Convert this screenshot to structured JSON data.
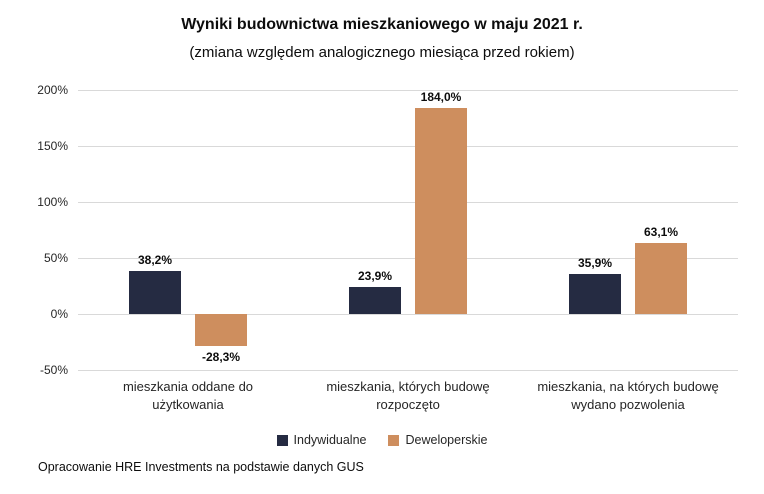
{
  "chart": {
    "title": "Wyniki budownictwa mieszkaniowego w maju 2021 r.",
    "subtitle": "(zmiana względem analogicznego miesiąca przed rokiem)",
    "source": "Opracowanie HRE Investments na podstawie danych GUS"
  },
  "chart_data": {
    "type": "bar",
    "title": "Wyniki budownictwa mieszkaniowego w maju 2021 r.",
    "subtitle": "(zmiana względem analogicznego miesiąca przed rokiem)",
    "categories": [
      "mieszkania oddane do użytkowania",
      "mieszkania, których budowę rozpoczęto",
      "mieszkania, na których budowę wydano pozwolenia"
    ],
    "series": [
      {
        "name": "Indywidualne",
        "color": "#252B42",
        "values": [
          38.2,
          23.9,
          35.9
        ],
        "labels": [
          "38,2%",
          "23,9%",
          "35,9%"
        ]
      },
      {
        "name": "Deweloperskie",
        "color": "#CE8E5E",
        "values": [
          -28.3,
          184.0,
          63.1
        ],
        "labels": [
          "-28,3%",
          "184,0%",
          "63,1%"
        ]
      }
    ],
    "ylim": [
      -50,
      200
    ],
    "yticks": [
      {
        "v": -50,
        "label": "-50%"
      },
      {
        "v": 0,
        "label": "0%"
      },
      {
        "v": 50,
        "label": "50%"
      },
      {
        "v": 100,
        "label": "100%"
      },
      {
        "v": 150,
        "label": "150%"
      },
      {
        "v": 200,
        "label": "200%"
      }
    ],
    "grid": true,
    "legend_position": "bottom",
    "xlabel": "",
    "ylabel": ""
  }
}
